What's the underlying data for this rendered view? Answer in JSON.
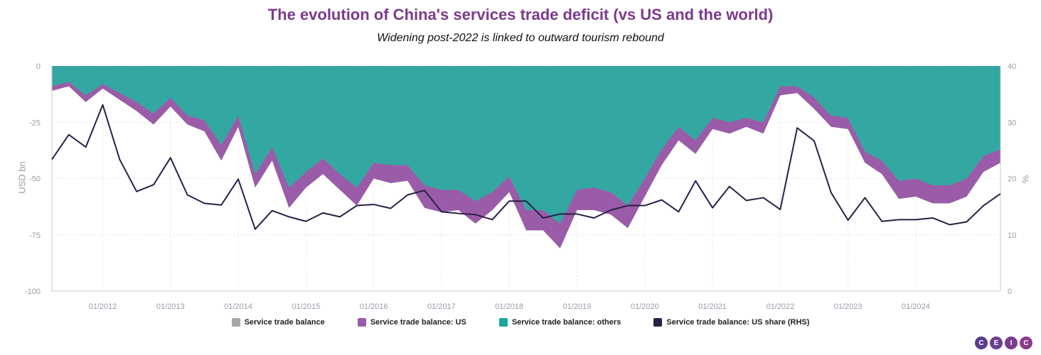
{
  "colors": {
    "title": "#7b3a8c",
    "balance": "#a6a6a6",
    "us": "#9a5ca8",
    "others": "#1aa7a1",
    "share_line": "#2a1f45",
    "axis_text": "#9a9aa8",
    "grid": "#e3e3e8",
    "logo": [
      "#5b3b8c",
      "#6a3f93",
      "#7b3a8c",
      "#8c3a8a"
    ]
  },
  "logo_text": [
    "C",
    "E",
    "I",
    "C"
  ],
  "chart_data": {
    "type": "area",
    "title": "The evolution of China's services trade deficit (vs US and the world)",
    "subtitle": "Widening post-2022 is linked to outward tourism rebound",
    "ylabel": "USD bn",
    "ylabel_right": "%",
    "ylim": [
      -100,
      0
    ],
    "yticks": [
      0,
      -25,
      -50,
      -75,
      -100
    ],
    "ylim_right": [
      0,
      40
    ],
    "yticks_right": [
      40,
      30,
      20,
      10,
      0
    ],
    "x_tick_labels": [
      "01/2012",
      "01/2013",
      "01/2014",
      "01/2015",
      "01/2016",
      "01/2017",
      "01/2018",
      "01/2019",
      "01/2020",
      "01/2021",
      "01/2022",
      "01/2023",
      "01/2024"
    ],
    "x_tick_index": [
      3,
      7,
      11,
      15,
      19,
      23,
      27,
      31,
      35,
      39,
      43,
      47,
      51
    ],
    "x": [
      "2011Q1",
      "2011Q2",
      "2011Q3",
      "2011Q4",
      "2012Q1",
      "2012Q2",
      "2012Q3",
      "2012Q4",
      "2013Q1",
      "2013Q2",
      "2013Q3",
      "2013Q4",
      "2014Q1",
      "2014Q2",
      "2014Q3",
      "2014Q4",
      "2015Q1",
      "2015Q2",
      "2015Q3",
      "2015Q4",
      "2016Q1",
      "2016Q2",
      "2016Q3",
      "2016Q4",
      "2017Q1",
      "2017Q2",
      "2017Q3",
      "2017Q4",
      "2018Q1",
      "2018Q2",
      "2018Q3",
      "2018Q4",
      "2019Q1",
      "2019Q2",
      "2019Q3",
      "2019Q4",
      "2020Q1",
      "2020Q2",
      "2020Q3",
      "2020Q4",
      "2021Q1",
      "2021Q2",
      "2021Q3",
      "2021Q4",
      "2022Q1",
      "2022Q2",
      "2022Q3",
      "2022Q4",
      "2023Q1",
      "2023Q2",
      "2023Q3",
      "2023Q4",
      "2024Q1",
      "2024Q2",
      "2024Q3",
      "2024Q4",
      "2025Q1"
    ],
    "series": [
      {
        "name": "Service trade balance",
        "values": [
          -11,
          -9,
          -16,
          -10,
          -15,
          -20,
          -26,
          -18,
          -26,
          -29,
          -42,
          -27,
          -54,
          -42,
          -63,
          -54,
          -48,
          -55,
          -62,
          -50,
          -52,
          -51,
          -63,
          -65,
          -64,
          -70,
          -64,
          -56,
          -73,
          -73,
          -81,
          -64,
          -64,
          -66,
          -72,
          -58,
          -44,
          -33,
          -39,
          -28,
          -30,
          -27,
          -30,
          -13,
          -12,
          -19,
          -27,
          -28,
          -43,
          -48,
          -59,
          -58,
          -61,
          -61,
          -58,
          -47,
          -43
        ]
      },
      {
        "name": "Service trade balance: US",
        "values": [
          -2,
          -2,
          -3,
          -2,
          -3,
          -4,
          -5,
          -4,
          -4,
          -5,
          -7,
          -5,
          -6,
          -6,
          -9,
          -7,
          -7,
          -7,
          -8,
          -7,
          -8,
          -7,
          -10,
          -10,
          -9,
          -10,
          -8,
          -7,
          -9,
          -9,
          -11,
          -9,
          -10,
          -10,
          -10,
          -8,
          -7,
          -6,
          -6,
          -5,
          -5,
          -4,
          -5,
          -4,
          -3,
          -5,
          -5,
          -5,
          -5,
          -6,
          -8,
          -8,
          -8,
          -8,
          -8,
          -7,
          -6
        ]
      },
      {
        "name": "Service trade balance: others",
        "values": [
          -9,
          -7,
          -13,
          -8,
          -12,
          -16,
          -21,
          -14,
          -22,
          -24,
          -35,
          -22,
          -48,
          -36,
          -54,
          -47,
          -41,
          -48,
          -54,
          -43,
          -44,
          -44,
          -53,
          -55,
          -55,
          -60,
          -56,
          -49,
          -64,
          -64,
          -70,
          -55,
          -54,
          -56,
          -62,
          -50,
          -37,
          -27,
          -33,
          -23,
          -25,
          -23,
          -25,
          -9,
          -9,
          -14,
          -22,
          -23,
          -38,
          -42,
          -51,
          -50,
          -53,
          -53,
          -50,
          -40,
          -37
        ]
      },
      {
        "name": "Service trade balance: US share (RHS)",
        "values": [
          23.4,
          27.8,
          25.6,
          33.1,
          23.4,
          17.7,
          18.9,
          23.7,
          17.1,
          15.6,
          15.3,
          19.9,
          11.0,
          14.3,
          13.2,
          12.4,
          13.9,
          13.2,
          15.2,
          15.4,
          14.7,
          17.1,
          17.9,
          14.1,
          13.8,
          13.6,
          12.7,
          16.0,
          16.0,
          13.0,
          13.7,
          13.7,
          13.0,
          14.4,
          15.2,
          15.2,
          16.2,
          14.1,
          19.6,
          14.8,
          18.6,
          16.1,
          16.6,
          14.5,
          29.0,
          26.7,
          17.5,
          12.6,
          16.6,
          12.4,
          12.7,
          12.7,
          13.0,
          11.8,
          12.3,
          15.2,
          17.3
        ]
      }
    ],
    "legend": [
      "Service trade balance",
      "Service trade balance: US",
      "Service trade balance: others",
      "Service trade balance: US share (RHS)"
    ],
    "legend_position": "bottom",
    "grid": true
  }
}
